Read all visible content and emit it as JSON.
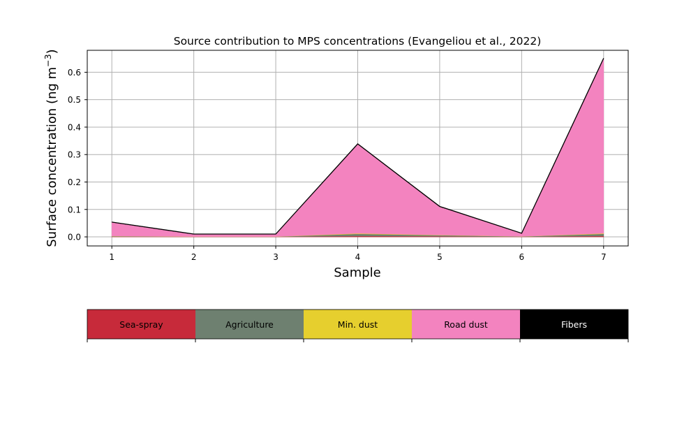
{
  "chart_data": {
    "type": "area",
    "stacked": true,
    "title": "Source contribution to MPS concentrations (Evangeliou et al., 2022)",
    "xlabel": "Sample",
    "ylabel_main": "Surface concentration (ng m",
    "ylabel_sup": "−3",
    "ylabel_close": ")",
    "x": [
      1,
      2,
      3,
      4,
      5,
      6,
      7
    ],
    "xlim": [
      0.7,
      7.3
    ],
    "ylim": [
      -0.033,
      0.68
    ],
    "yticks": [
      0.0,
      0.1,
      0.2,
      0.3,
      0.4,
      0.5,
      0.6
    ],
    "ytick_labels": [
      "0.0",
      "0.1",
      "0.2",
      "0.3",
      "0.4",
      "0.5",
      "0.6"
    ],
    "xtick_labels": [
      "1",
      "2",
      "3",
      "4",
      "5",
      "6",
      "7"
    ],
    "grid": true,
    "series": [
      {
        "name": "Sea-spray",
        "color": "#c72a3a",
        "values": [
          0.001,
          0.0005,
          0.0005,
          0.003,
          0.002,
          0.0005,
          0.003
        ]
      },
      {
        "name": "Agriculture",
        "color": "#6e8070",
        "values": [
          0.0015,
          0.0005,
          0.0005,
          0.008,
          0.004,
          0.001,
          0.008
        ]
      },
      {
        "name": "Min. dust",
        "color": "#e6cf2e",
        "values": [
          0.0005,
          0.0003,
          0.0003,
          0.002,
          0.001,
          0.0003,
          0.002
        ]
      },
      {
        "name": "Road dust",
        "color": "#f383bf",
        "values": [
          0.0505,
          0.0087,
          0.0087,
          0.325,
          0.103,
          0.0112,
          0.637
        ]
      },
      {
        "name": "Fibers",
        "color": "#000000",
        "values": [
          0.0005,
          0.0002,
          0.0002,
          0.001,
          0.001,
          0.0002,
          0.001
        ]
      }
    ],
    "legend": {
      "placement": "bottom",
      "items": [
        {
          "label": "Sea-spray",
          "color": "#c72a3a",
          "text_color": "#000000"
        },
        {
          "label": "Agriculture",
          "color": "#6e8070",
          "text_color": "#000000"
        },
        {
          "label": "Min. dust",
          "color": "#e6cf2e",
          "text_color": "#000000"
        },
        {
          "label": "Road dust",
          "color": "#f383bf",
          "text_color": "#000000"
        },
        {
          "label": "Fibers",
          "color": "#000000",
          "text_color": "#ffffff"
        }
      ]
    }
  }
}
